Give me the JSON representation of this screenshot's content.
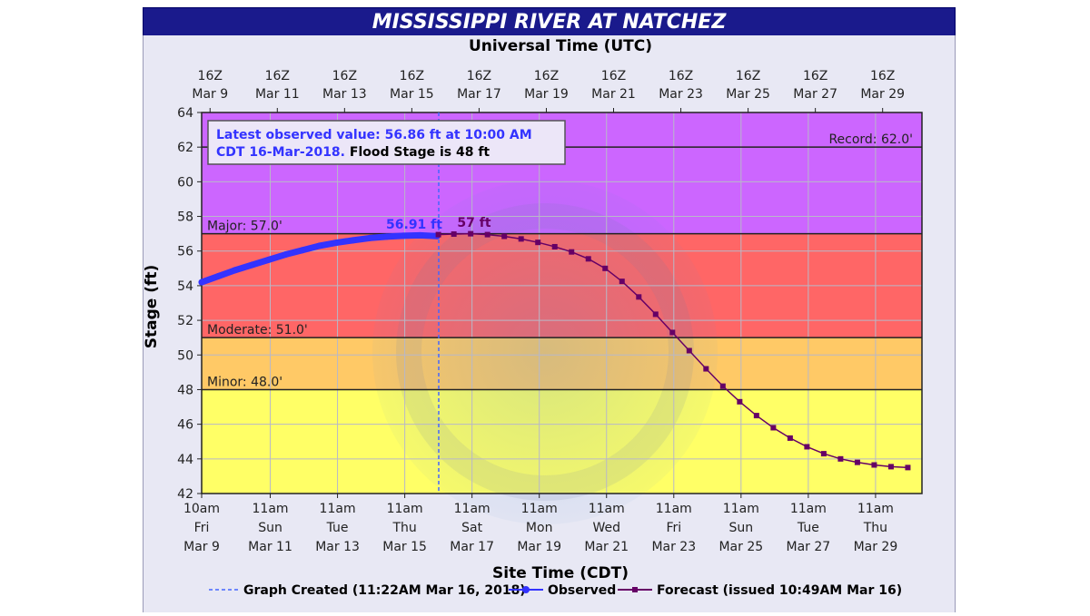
{
  "title": "MISSISSIPPI RIVER AT NATCHEZ",
  "chart_data": {
    "type": "line",
    "title": "MISSISSIPPI RIVER AT NATCHEZ",
    "top_axis_label": "Universal Time (UTC)",
    "xlabel": "Site Time (CDT)",
    "ylabel": "Stage (ft)",
    "ylim": [
      42,
      64
    ],
    "y_ticks": [
      42,
      44,
      46,
      48,
      50,
      52,
      54,
      56,
      58,
      60,
      62,
      64
    ],
    "x_range_days": [
      "Mar 9 10am",
      "Mar 30 8pm"
    ],
    "top_ticks": [
      {
        "line1": "16Z",
        "line2": "Mar  9"
      },
      {
        "line1": "16Z",
        "line2": "Mar 11"
      },
      {
        "line1": "16Z",
        "line2": "Mar 13"
      },
      {
        "line1": "16Z",
        "line2": "Mar 15"
      },
      {
        "line1": "16Z",
        "line2": "Mar 17"
      },
      {
        "line1": "16Z",
        "line2": "Mar 19"
      },
      {
        "line1": "16Z",
        "line2": "Mar 21"
      },
      {
        "line1": "16Z",
        "line2": "Mar 23"
      },
      {
        "line1": "16Z",
        "line2": "Mar 25"
      },
      {
        "line1": "16Z",
        "line2": "Mar 27"
      },
      {
        "line1": "16Z",
        "line2": "Mar 29"
      }
    ],
    "bottom_ticks": [
      {
        "line1": "10am",
        "line2": "Fri",
        "line3": "Mar 9"
      },
      {
        "line1": "11am",
        "line2": "Sun",
        "line3": "Mar 11"
      },
      {
        "line1": "11am",
        "line2": "Tue",
        "line3": "Mar 13"
      },
      {
        "line1": "11am",
        "line2": "Thu",
        "line3": "Mar 15"
      },
      {
        "line1": "11am",
        "line2": "Sat",
        "line3": "Mar 17"
      },
      {
        "line1": "11am",
        "line2": "Mon",
        "line3": "Mar 19"
      },
      {
        "line1": "11am",
        "line2": "Wed",
        "line3": "Mar 21"
      },
      {
        "line1": "11am",
        "line2": "Fri",
        "line3": "Mar 23"
      },
      {
        "line1": "11am",
        "line2": "Sun",
        "line3": "Mar 25"
      },
      {
        "line1": "11am",
        "line2": "Tue",
        "line3": "Mar 27"
      },
      {
        "line1": "11am",
        "line2": "Thu",
        "line3": "Mar 29"
      }
    ],
    "flood_categories": [
      {
        "name": "Minor",
        "label": "Minor: 48.0'",
        "from": 42,
        "to": 48,
        "color": "#ffff66"
      },
      {
        "name": "Moderate",
        "label": "Moderate: 51.0'",
        "from": 48,
        "to": 51,
        "color": "#ffc966"
      },
      {
        "name": "Major",
        "label": "Major: 57.0'",
        "from": 51,
        "to": 57,
        "color": "#ff6666"
      },
      {
        "name": "Record",
        "label": "Record: 62.0'",
        "from": 57,
        "to": 64,
        "color": "#cc66ff"
      }
    ],
    "thresholds": [
      {
        "value": 48,
        "label": "Minor: 48.0'"
      },
      {
        "value": 51,
        "label": "Moderate: 51.0'"
      },
      {
        "value": 57,
        "label": "Major: 57.0'"
      },
      {
        "value": 62,
        "label": "Record: 62.0'"
      }
    ],
    "info_box": {
      "line1": "Latest observed value: 56.86 ft at 10:00 AM",
      "line2a": "CDT 16-Mar-2018.",
      "line2b": " Flood Stage is 48 ft"
    },
    "graph_created_day": 7.05,
    "observed_peak_label": "56.91 ft",
    "forecast_peak_label": "57 ft",
    "series": [
      {
        "name": "Observed",
        "color": "#3333ff",
        "x": [
          0,
          0.5,
          1,
          1.5,
          2,
          2.5,
          3,
          3.5,
          4,
          4.5,
          5,
          5.5,
          6,
          6.5,
          7
        ],
        "y": [
          54.2,
          54.55,
          54.9,
          55.2,
          55.5,
          55.8,
          56.05,
          56.3,
          56.48,
          56.62,
          56.75,
          56.83,
          56.88,
          56.91,
          56.86
        ]
      },
      {
        "name": "Forecast",
        "color": "#660066",
        "x": [
          7.04,
          7.5,
          8,
          8.5,
          9,
          9.5,
          10,
          10.5,
          11,
          11.5,
          12,
          12.5,
          13,
          13.5,
          14,
          14.5,
          15,
          15.5,
          16,
          16.5,
          17,
          17.5,
          18,
          18.5,
          19,
          19.5,
          20,
          20.5,
          21
        ],
        "y": [
          56.95,
          56.98,
          57.0,
          56.95,
          56.85,
          56.7,
          56.5,
          56.25,
          55.95,
          55.55,
          55.0,
          54.25,
          53.35,
          52.35,
          51.3,
          50.25,
          49.2,
          48.2,
          47.3,
          46.5,
          45.8,
          45.2,
          44.7,
          44.3,
          44.0,
          43.8,
          43.65,
          43.55,
          43.5
        ]
      }
    ],
    "legend": {
      "created": "Graph Created (11:22AM Mar 16, 2018)",
      "observed": "Observed",
      "forecast": "Forecast (issued 10:49AM Mar 16)"
    }
  }
}
